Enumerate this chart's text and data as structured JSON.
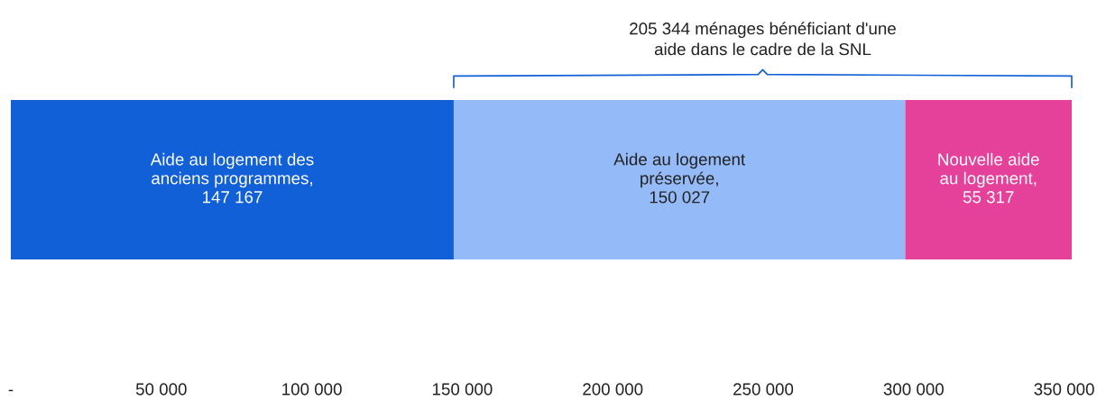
{
  "chart_data": {
    "type": "bar",
    "orientation": "horizontal",
    "stacked": true,
    "categories": [
      null
    ],
    "series": [
      {
        "name": "Aide au logement des\nanciens programmes,",
        "color": "#1160d8",
        "values": [
          147167
        ],
        "value_labels": [
          "147 167"
        ]
      },
      {
        "name": "Aide au logement\npréservée,",
        "color": "#94bbf7",
        "values": [
          150027
        ],
        "value_labels": [
          "150 027"
        ]
      },
      {
        "name": "Nouvelle aide\nau logement,",
        "color": "#e5409a",
        "values": [
          55317
        ],
        "value_labels": [
          "55 317"
        ]
      }
    ],
    "xticks": [
      {
        "value": 0,
        "label": "-"
      },
      {
        "value": 50000,
        "label": "50 000"
      },
      {
        "value": 100000,
        "label": "100 000"
      },
      {
        "value": 150000,
        "label": "150 000"
      },
      {
        "value": 200000,
        "label": "200 000"
      },
      {
        "value": 250000,
        "label": "250 000"
      },
      {
        "value": 300000,
        "label": "300 000"
      },
      {
        "value": 350000,
        "label": "350 000"
      }
    ],
    "xlim": [
      0,
      352511
    ],
    "tick_labels": "x",
    "grid": false,
    "legend": false,
    "annotations": [
      "205 344 ménages bénéficiant d'une\naide dans le cadre de la SNL"
    ]
  }
}
